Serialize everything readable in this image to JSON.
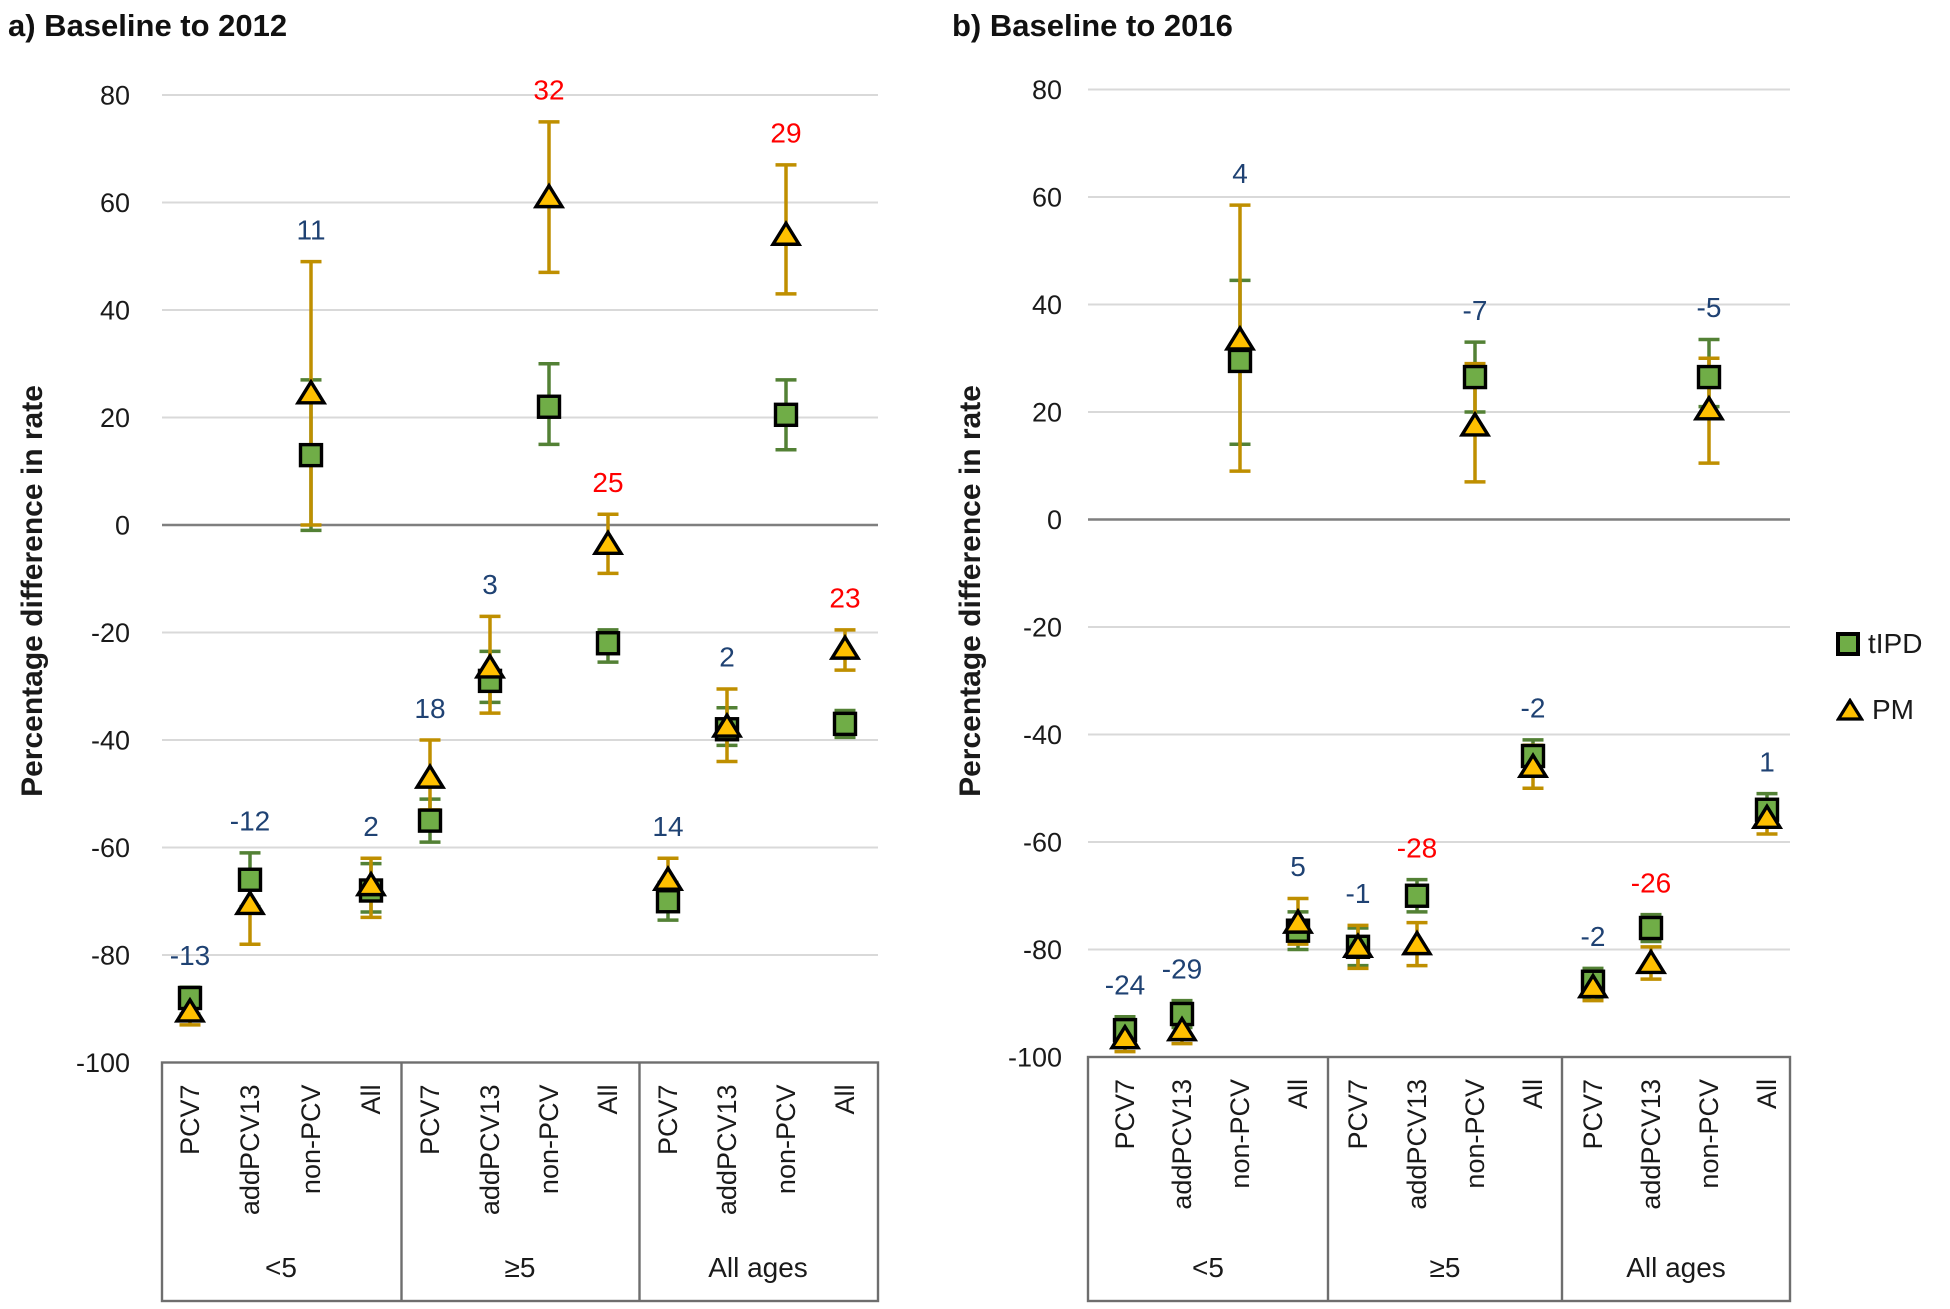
{
  "figure": {
    "legend": {
      "items": [
        {
          "label": "tIPD",
          "marker": "green-square"
        },
        {
          "label": "PM",
          "marker": "gold-triangle"
        }
      ]
    },
    "colors": {
      "tipd_fill": "#70AD47",
      "tipd_line": "#538135",
      "pm_fill": "#FFC000",
      "pm_line": "#BF8F00",
      "label_blue": "#1F4273",
      "label_red": "#FF0000",
      "gridline": "#D9D9D9",
      "zero_line": "#7F7F7F",
      "box_border": "#6E6E6E",
      "text": "#1A1A1A"
    }
  },
  "chart_data": [
    {
      "type": "scatter",
      "title": "a) Baseline to 2012",
      "y_axis_title": "Percentage difference  in rate",
      "ylabel_ticks": [
        80,
        60,
        40,
        20,
        0,
        -20,
        -40,
        -60,
        -80,
        -100
      ],
      "ylim": [
        -100,
        80
      ],
      "grid": true,
      "legend_position": "right-of-figure",
      "age_groups": [
        {
          "label": "<5",
          "categories": [
            "PCV7",
            "addPCV13",
            "non-PCV",
            "All"
          ]
        },
        {
          "label": "≥5",
          "categories": [
            "PCV7",
            "addPCV13",
            "non-PCV",
            "All"
          ]
        },
        {
          "label": "All ages",
          "categories": [
            "PCV7",
            "addPCV13",
            "non-PCV",
            "All"
          ]
        }
      ],
      "series_names": [
        "tIPD",
        "PM"
      ],
      "points": [
        {
          "age_group": "<5",
          "category": "PCV7",
          "label": "-13",
          "label_color": "blue",
          "tIPD": {
            "v": -88,
            "lo": -91,
            "hi": -86
          },
          "PM": {
            "v": -90.5,
            "lo": -93,
            "hi": -88
          }
        },
        {
          "age_group": "<5",
          "category": "addPCV13",
          "label": "-12",
          "label_color": "blue",
          "tIPD": {
            "v": -66,
            "lo": -71,
            "hi": -61
          },
          "PM": {
            "v": -70.5,
            "lo": -78,
            "hi": -65
          }
        },
        {
          "age_group": "<5",
          "category": "non-PCV",
          "label": "11",
          "label_color": "blue",
          "tIPD": {
            "v": 13,
            "lo": -1,
            "hi": 27
          },
          "PM": {
            "v": 24.5,
            "lo": 0,
            "hi": 49
          }
        },
        {
          "age_group": "<5",
          "category": "All",
          "label": "2",
          "label_color": "blue",
          "tIPD": {
            "v": -68,
            "lo": -72,
            "hi": -63
          },
          "PM": {
            "v": -67,
            "lo": -73,
            "hi": -62
          }
        },
        {
          "age_group": "≥5",
          "category": "PCV7",
          "label": "18",
          "label_color": "blue",
          "tIPD": {
            "v": -55,
            "lo": -59,
            "hi": -51
          },
          "PM": {
            "v": -47,
            "lo": -53,
            "hi": -40
          }
        },
        {
          "age_group": "≥5",
          "category": "addPCV13",
          "label": "3",
          "label_color": "blue",
          "tIPD": {
            "v": -29,
            "lo": -33,
            "hi": -23.5
          },
          "PM": {
            "v": -26.5,
            "lo": -35,
            "hi": -17
          }
        },
        {
          "age_group": "≥5",
          "category": "non-PCV",
          "label": "32",
          "label_color": "red",
          "tIPD": {
            "v": 22,
            "lo": 15,
            "hi": 30
          },
          "PM": {
            "v": 61,
            "lo": 47,
            "hi": 75
          }
        },
        {
          "age_group": "≥5",
          "category": "All",
          "label": "25",
          "label_color": "red",
          "tIPD": {
            "v": -22,
            "lo": -25.5,
            "hi": -19.5
          },
          "PM": {
            "v": -3.5,
            "lo": -9,
            "hi": 2
          }
        },
        {
          "age_group": "All ages",
          "category": "PCV7",
          "label": "14",
          "label_color": "blue",
          "tIPD": {
            "v": -70,
            "lo": -73.5,
            "hi": -66.5
          },
          "PM": {
            "v": -66,
            "lo": -70,
            "hi": -62
          }
        },
        {
          "age_group": "All ages",
          "category": "addPCV13",
          "label": "2",
          "label_color": "blue",
          "tIPD": {
            "v": -38,
            "lo": -41,
            "hi": -34
          },
          "PM": {
            "v": -37.5,
            "lo": -44,
            "hi": -30.5
          }
        },
        {
          "age_group": "All ages",
          "category": "non-PCV",
          "label": "29",
          "label_color": "red",
          "tIPD": {
            "v": 20.5,
            "lo": 14,
            "hi": 27
          },
          "PM": {
            "v": 54,
            "lo": 43,
            "hi": 67
          }
        },
        {
          "age_group": "All ages",
          "category": "All",
          "label": "23",
          "label_color": "red",
          "tIPD": {
            "v": -37,
            "lo": -39.5,
            "hi": -34.5
          },
          "PM": {
            "v": -23,
            "lo": -27,
            "hi": -19.5
          }
        }
      ]
    },
    {
      "type": "scatter",
      "title": "b) Baseline to 2016",
      "y_axis_title": "Percentage difference  in rate",
      "ylabel_ticks": [
        80,
        60,
        40,
        20,
        0,
        -20,
        -40,
        -60,
        -80,
        -100
      ],
      "ylim": [
        -100,
        80
      ],
      "grid": true,
      "legend_position": "right-of-figure",
      "age_groups": [
        {
          "label": "<5",
          "categories": [
            "PCV7",
            "addPCV13",
            "non-PCV",
            "All"
          ]
        },
        {
          "label": "≥5",
          "categories": [
            "PCV7",
            "addPCV13",
            "non-PCV",
            "All"
          ]
        },
        {
          "label": "All ages",
          "categories": [
            "PCV7",
            "addPCV13",
            "non-PCV",
            "All"
          ]
        }
      ],
      "series_names": [
        "tIPD",
        "PM"
      ],
      "points": [
        {
          "age_group": "<5",
          "category": "PCV7",
          "label": "-24",
          "label_color": "blue",
          "tIPD": {
            "v": -95,
            "lo": -97.5,
            "hi": -92.5
          },
          "PM": {
            "v": -96.5,
            "lo": -99,
            "hi": -94
          }
        },
        {
          "age_group": "<5",
          "category": "addPCV13",
          "label": "-29",
          "label_color": "blue",
          "tIPD": {
            "v": -92,
            "lo": -94.5,
            "hi": -89.5
          },
          "PM": {
            "v": -95,
            "lo": -97.5,
            "hi": -92.5
          }
        },
        {
          "age_group": "<5",
          "category": "non-PCV",
          "label": "4",
          "label_color": "blue",
          "tIPD": {
            "v": 29.5,
            "lo": 14,
            "hi": 44.5
          },
          "PM": {
            "v": 33.5,
            "lo": 9,
            "hi": 58.5
          }
        },
        {
          "age_group": "<5",
          "category": "All",
          "label": "5",
          "label_color": "blue",
          "tIPD": {
            "v": -76.5,
            "lo": -80,
            "hi": -73
          },
          "PM": {
            "v": -75,
            "lo": -79,
            "hi": -70.5
          }
        },
        {
          "age_group": "≥5",
          "category": "PCV7",
          "label": "-1",
          "label_color": "blue",
          "tIPD": {
            "v": -79.5,
            "lo": -83,
            "hi": -76
          },
          "PM": {
            "v": -79.5,
            "lo": -83.5,
            "hi": -75.5
          }
        },
        {
          "age_group": "≥5",
          "category": "addPCV13",
          "label": "-28",
          "label_color": "red",
          "tIPD": {
            "v": -70,
            "lo": -73,
            "hi": -67
          },
          "PM": {
            "v": -79,
            "lo": -83,
            "hi": -75
          }
        },
        {
          "age_group": "≥5",
          "category": "non-PCV",
          "label": "-7",
          "label_color": "blue",
          "tIPD": {
            "v": 26.5,
            "lo": 20,
            "hi": 33
          },
          "PM": {
            "v": 17.5,
            "lo": 7,
            "hi": 29
          }
        },
        {
          "age_group": "≥5",
          "category": "All",
          "label": "-2",
          "label_color": "blue",
          "tIPD": {
            "v": -44,
            "lo": -47,
            "hi": -41
          },
          "PM": {
            "v": -46,
            "lo": -50,
            "hi": -42
          }
        },
        {
          "age_group": "All ages",
          "category": "PCV7",
          "label": "-2",
          "label_color": "blue",
          "tIPD": {
            "v": -86,
            "lo": -89,
            "hi": -83.5
          },
          "PM": {
            "v": -87,
            "lo": -89.5,
            "hi": -84.5
          }
        },
        {
          "age_group": "All ages",
          "category": "addPCV13",
          "label": "-26",
          "label_color": "red",
          "tIPD": {
            "v": -76,
            "lo": -78.5,
            "hi": -73.5
          },
          "PM": {
            "v": -82.5,
            "lo": -85.5,
            "hi": -79.5
          }
        },
        {
          "age_group": "All ages",
          "category": "non-PCV",
          "label": "-5",
          "label_color": "blue",
          "tIPD": {
            "v": 26.5,
            "lo": 21,
            "hi": 33.5
          },
          "PM": {
            "v": 20.5,
            "lo": 10.5,
            "hi": 30
          }
        },
        {
          "age_group": "All ages",
          "category": "All",
          "label": "1",
          "label_color": "blue",
          "tIPD": {
            "v": -54,
            "lo": -57,
            "hi": -51
          },
          "PM": {
            "v": -55.5,
            "lo": -58.5,
            "hi": -52.5
          }
        }
      ]
    }
  ]
}
